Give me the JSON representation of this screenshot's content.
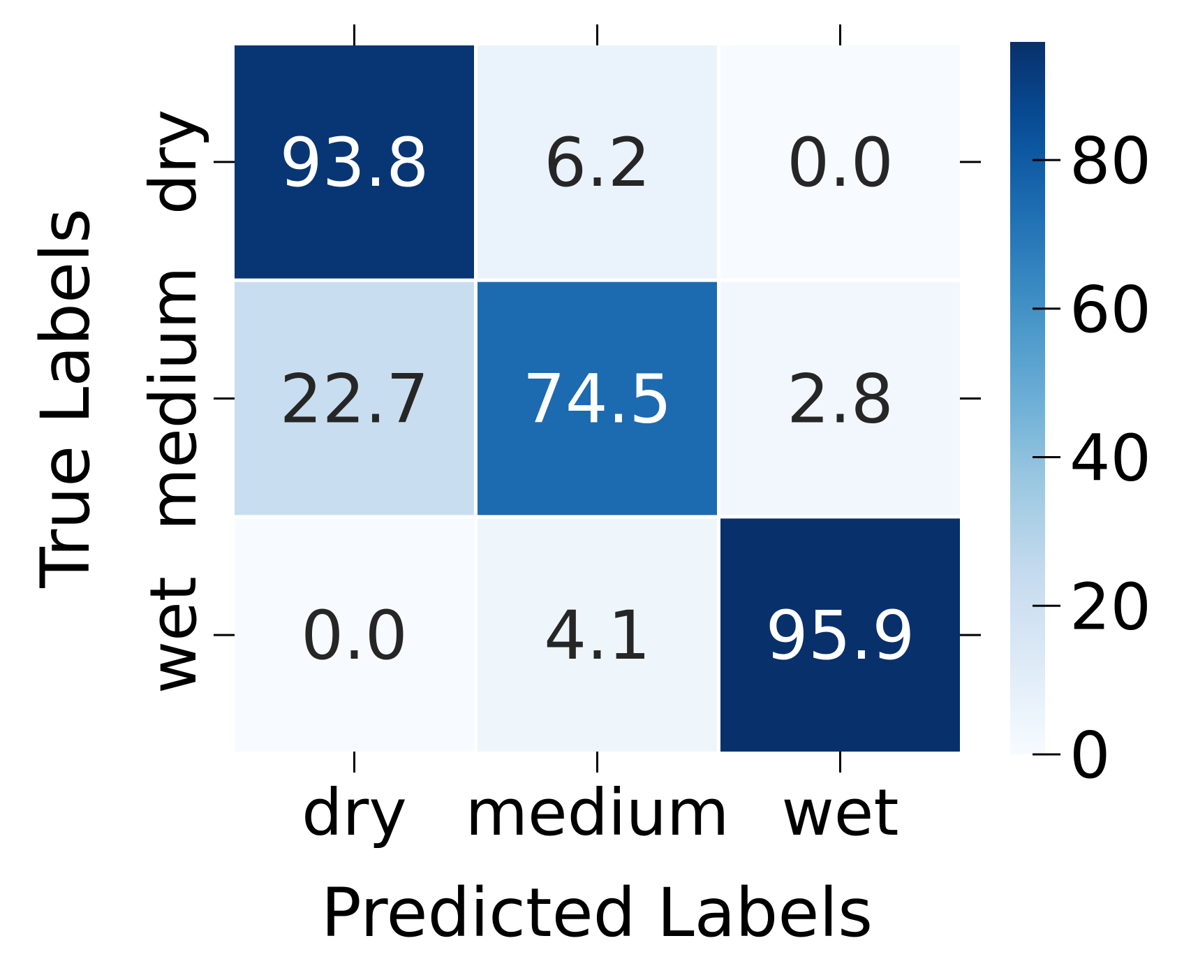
{
  "chart_data": {
    "type": "heatmap",
    "title": "",
    "xlabel": "Predicted Labels",
    "ylabel": "True Labels",
    "x_categories": [
      "dry",
      "medium",
      "wet"
    ],
    "y_categories": [
      "dry",
      "medium",
      "wet"
    ],
    "values": [
      [
        93.8,
        6.2,
        0.0
      ],
      [
        22.7,
        74.5,
        2.8
      ],
      [
        0.0,
        4.1,
        95.9
      ]
    ],
    "value_labels": [
      [
        "93.8",
        "6.2",
        "0.0"
      ],
      [
        "22.7",
        "74.5",
        "2.8"
      ],
      [
        "0.0",
        "4.1",
        "95.9"
      ]
    ],
    "colormap": "Blues",
    "colorbar": {
      "range": [
        0,
        95.9
      ],
      "ticks": [
        0,
        20,
        40,
        60,
        80
      ],
      "tick_labels": [
        "0",
        "20",
        "40",
        "60",
        "80"
      ],
      "placement": "right"
    },
    "colors": {
      "low": "#f7fbff",
      "high": "#08306b",
      "text_dark": "#262626",
      "text_light": "#ffffff"
    }
  }
}
